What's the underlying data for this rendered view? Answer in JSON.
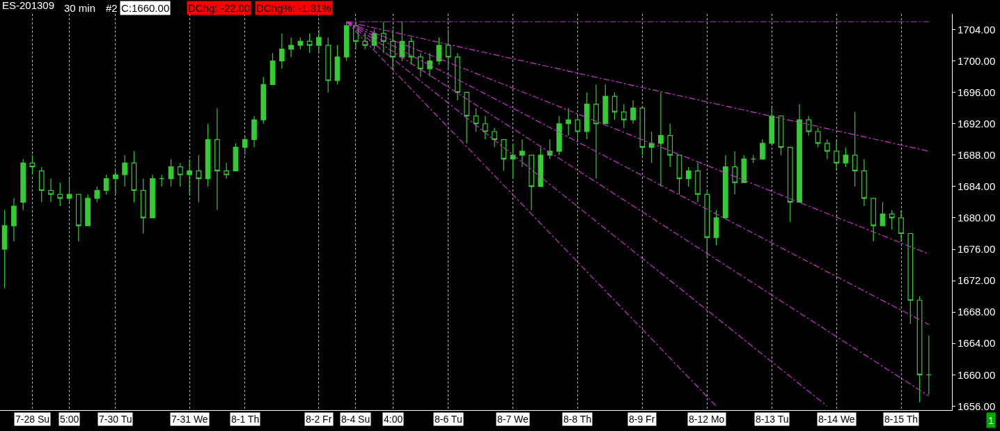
{
  "chart_data": {
    "type": "candlestick",
    "title": "ES-201309",
    "annotations": [
      "30 min",
      "#2",
      "C:1660.00",
      "DChg: -22.00",
      "DChg%: -1.31%",
      "1"
    ],
    "categories": [
      null,
      null,
      null,
      "7-28 Su",
      null,
      null,
      null,
      "5:00",
      null,
      null,
      null,
      null,
      "7-30 Tu",
      null,
      null,
      null,
      null,
      null,
      null,
      null,
      "7-31 We",
      null,
      null,
      null,
      null,
      null,
      "8-1 Th",
      null,
      null,
      null,
      null,
      null,
      null,
      null,
      "8-2 Fr",
      null,
      null,
      null,
      "8-4 Su",
      null,
      null,
      null,
      "4:00",
      null,
      null,
      null,
      null,
      null,
      "8-6 Tu",
      null,
      null,
      null,
      null,
      null,
      null,
      "8-7 We",
      null,
      null,
      null,
      null,
      null,
      null,
      "8-8 Th",
      null,
      null,
      null,
      null,
      null,
      null,
      "8-9 Fr",
      null,
      null,
      null,
      null,
      null,
      null,
      "8-12 Mo",
      null,
      null,
      null,
      null,
      null,
      null,
      "8-13 Tu",
      null,
      null,
      null,
      null,
      null,
      null,
      "8-14 We",
      null,
      null,
      null,
      null,
      null,
      null,
      "8-15 Th",
      null,
      null,
      null
    ],
    "color": "#33cc33",
    "ohlc": [
      [
        1676,
        1681,
        1671,
        1679
      ],
      [
        1679,
        1682.5,
        1677,
        1681.5
      ],
      [
        1682,
        1687.5,
        1681,
        1687
      ],
      [
        1687,
        1688,
        1685.5,
        1686.5
      ],
      [
        1686,
        1686.5,
        1682,
        1683.5
      ],
      [
        1683.5,
        1685,
        1682,
        1683
      ],
      [
        1683,
        1684.5,
        1681.5,
        1682.5
      ],
      [
        1682.5,
        1685,
        1682,
        1683
      ],
      [
        1683,
        1683,
        1677,
        1679
      ],
      [
        1679,
        1683,
        1679,
        1682.5
      ],
      [
        1682.5,
        1684,
        1682,
        1683.5
      ],
      [
        1683.5,
        1685.5,
        1683,
        1685
      ],
      [
        1685,
        1686,
        1683,
        1685.5
      ],
      [
        1685.5,
        1688,
        1684,
        1687
      ],
      [
        1687,
        1688.5,
        1682,
        1683.5
      ],
      [
        1683.5,
        1685,
        1678,
        1680
      ],
      [
        1680,
        1685.5,
        1680,
        1685
      ],
      [
        1685,
        1685.5,
        1684,
        1685
      ],
      [
        1685,
        1687.5,
        1684,
        1686.5
      ],
      [
        1686.5,
        1687,
        1684,
        1685.5
      ],
      [
        1685.5,
        1687.5,
        1683,
        1686
      ],
      [
        1686,
        1688,
        1682,
        1685
      ],
      [
        1685,
        1692,
        1684,
        1690
      ],
      [
        1690,
        1694,
        1681,
        1686
      ],
      [
        1686,
        1687,
        1685,
        1685.5
      ],
      [
        1686,
        1689.5,
        1686,
        1689
      ],
      [
        1689,
        1690.5,
        1688,
        1690
      ],
      [
        1690,
        1693,
        1689,
        1692.5
      ],
      [
        1692.5,
        1698,
        1692,
        1697
      ],
      [
        1697,
        1701,
        1697,
        1700
      ],
      [
        1700,
        1703.5,
        1699,
        1701.5
      ],
      [
        1701.5,
        1703,
        1700.5,
        1702
      ],
      [
        1702,
        1703,
        1701.5,
        1702.5
      ],
      [
        1702.5,
        1703.5,
        1701,
        1702
      ],
      [
        1702,
        1704,
        1701,
        1703
      ],
      [
        1702,
        1703,
        1696,
        1697.5
      ],
      [
        1697.5,
        1702,
        1697,
        1700.5
      ],
      [
        1700.5,
        1705,
        1700,
        1704.5
      ],
      [
        1704.5,
        1705,
        1701.5,
        1702.5
      ],
      [
        1702.5,
        1703.5,
        1701.5,
        1702
      ],
      [
        1702,
        1704,
        1701.5,
        1703.5
      ],
      [
        1703.5,
        1705,
        1701,
        1702.5
      ],
      [
        1702.5,
        1704,
        1699,
        1700.5
      ],
      [
        1700.5,
        1705,
        1700,
        1702.5
      ],
      [
        1702.5,
        1703,
        1699.5,
        1700.5
      ],
      [
        1700.5,
        1701,
        1698,
        1699
      ],
      [
        1699,
        1701,
        1698,
        1700
      ],
      [
        1700,
        1703,
        1699.5,
        1702
      ],
      [
        1702,
        1704,
        1699,
        1700.5
      ],
      [
        1700.5,
        1701,
        1695,
        1696
      ],
      [
        1696,
        1696,
        1689.5,
        1693
      ],
      [
        1693,
        1694,
        1691,
        1692
      ],
      [
        1692,
        1693,
        1690,
        1691
      ],
      [
        1691,
        1691.5,
        1689,
        1690
      ],
      [
        1690,
        1690,
        1686,
        1687.5
      ],
      [
        1687.5,
        1689.5,
        1685,
        1688
      ],
      [
        1688,
        1690,
        1686.5,
        1688.5
      ],
      [
        1688,
        1688,
        1681,
        1684
      ],
      [
        1684,
        1689,
        1684,
        1688
      ],
      [
        1688,
        1690,
        1687.5,
        1688.5
      ],
      [
        1688.5,
        1693,
        1688,
        1692
      ],
      [
        1692,
        1694,
        1690.5,
        1692.5
      ],
      [
        1692.5,
        1693,
        1690,
        1691
      ],
      [
        1691,
        1696,
        1690,
        1694.5
      ],
      [
        1694.5,
        1697,
        1685,
        1692
      ],
      [
        1692,
        1697,
        1692,
        1695.5
      ],
      [
        1695.5,
        1696,
        1692.5,
        1693.5
      ],
      [
        1693.5,
        1694.5,
        1691.5,
        1692.5
      ],
      [
        1692.5,
        1695,
        1692,
        1694
      ],
      [
        1694,
        1694,
        1688,
        1689
      ],
      [
        1689,
        1691,
        1687,
        1689.5
      ],
      [
        1689.5,
        1696,
        1684,
        1690.5
      ],
      [
        1690.5,
        1692,
        1686.5,
        1688
      ],
      [
        1688,
        1688,
        1683,
        1685
      ],
      [
        1685,
        1686.5,
        1684,
        1686
      ],
      [
        1686,
        1687,
        1682,
        1683
      ],
      [
        1683,
        1683.5,
        1675,
        1677.5
      ],
      [
        1677.5,
        1681,
        1676.5,
        1680
      ],
      [
        1680,
        1688,
        1680,
        1686.5
      ],
      [
        1686.5,
        1688.5,
        1683,
        1684.5
      ],
      [
        1684.5,
        1688,
        1684.5,
        1687.5
      ],
      [
        1687.5,
        1688,
        1687,
        1687.5
      ],
      [
        1687.5,
        1690,
        1687.5,
        1689.5
      ],
      [
        1689.5,
        1694,
        1689.5,
        1693
      ],
      [
        1693,
        1693,
        1688,
        1689
      ],
      [
        1689,
        1689,
        1679.5,
        1682
      ],
      [
        1682,
        1694.5,
        1682,
        1692.5
      ],
      [
        1692.5,
        1693,
        1690.5,
        1691
      ],
      [
        1691,
        1691.5,
        1689,
        1689.5
      ],
      [
        1689.5,
        1690,
        1687.5,
        1688.5
      ],
      [
        1688.5,
        1690,
        1686,
        1687
      ],
      [
        1687,
        1689,
        1686.5,
        1688
      ],
      [
        1688,
        1693.5,
        1684,
        1686
      ],
      [
        1686,
        1687.5,
        1681.5,
        1682.5
      ],
      [
        1682.5,
        1682.5,
        1677,
        1679
      ],
      [
        1679,
        1682,
        1679,
        1680.5
      ],
      [
        1680.5,
        1681,
        1678.5,
        1680
      ],
      [
        1680,
        1681,
        1677,
        1678
      ],
      [
        1678,
        1678,
        1666.5,
        1669.5
      ],
      [
        1669.5,
        1670,
        1656.5,
        1660
      ],
      [
        1660,
        1665,
        1657.5,
        1660
      ]
    ],
    "series": [
      {
        "type": "line",
        "color": "#cc33cc",
        "values": [
          null,
          null,
          null,
          null,
          null,
          null,
          null,
          null,
          null,
          null,
          null,
          null,
          null,
          null,
          null,
          null,
          null,
          null,
          null,
          null,
          null,
          null,
          null,
          null,
          null,
          null,
          null,
          null,
          null,
          null,
          null,
          null,
          null,
          null,
          null,
          null,
          null,
          1705,
          null,
          null,
          null,
          null,
          null,
          null,
          null,
          null,
          null,
          null,
          null,
          null,
          null,
          null,
          null,
          null,
          null,
          null,
          null,
          null,
          null,
          null,
          null,
          null,
          null,
          null,
          null,
          null,
          null,
          null,
          null,
          null,
          null,
          null,
          null,
          null,
          null,
          null,
          null,
          null,
          null,
          null,
          null,
          null,
          null,
          null,
          null,
          null,
          null,
          null,
          null,
          null,
          null,
          null,
          null,
          null,
          null,
          null,
          null,
          null,
          null,
          null,
          1705
        ]
      },
      {
        "type": "line",
        "color": "#cc33cc",
        "values": [
          null,
          null,
          null,
          null,
          null,
          null,
          null,
          null,
          null,
          null,
          null,
          null,
          null,
          null,
          null,
          null,
          null,
          null,
          null,
          null,
          null,
          null,
          null,
          null,
          null,
          null,
          null,
          null,
          null,
          null,
          null,
          null,
          null,
          null,
          null,
          null,
          null,
          1705,
          null,
          null,
          null,
          null,
          null,
          null,
          null,
          null,
          null,
          null,
          null,
          null,
          null,
          null,
          null,
          null,
          null,
          null,
          null,
          null,
          null,
          null,
          null,
          null,
          null,
          null,
          null,
          null,
          null,
          null,
          null,
          null,
          null,
          null,
          null,
          null,
          null,
          null,
          null,
          null,
          null,
          null,
          null,
          null,
          null,
          null,
          null,
          null,
          null,
          null,
          null,
          null,
          null,
          null,
          null,
          null,
          null,
          null,
          null,
          null,
          null,
          null,
          1688.5
        ]
      },
      {
        "type": "line",
        "color": "#cc33cc",
        "values": [
          null,
          null,
          null,
          null,
          null,
          null,
          null,
          null,
          null,
          null,
          null,
          null,
          null,
          null,
          null,
          null,
          null,
          null,
          null,
          null,
          null,
          null,
          null,
          null,
          null,
          null,
          null,
          null,
          null,
          null,
          null,
          null,
          null,
          null,
          null,
          null,
          null,
          1705,
          null,
          null,
          null,
          null,
          null,
          null,
          null,
          null,
          null,
          null,
          null,
          null,
          null,
          null,
          null,
          null,
          null,
          null,
          null,
          null,
          null,
          null,
          null,
          null,
          null,
          null,
          null,
          null,
          null,
          null,
          null,
          null,
          null,
          null,
          null,
          null,
          null,
          null,
          null,
          null,
          null,
          null,
          null,
          null,
          null,
          null,
          null,
          null,
          null,
          null,
          null,
          null,
          null,
          null,
          null,
          null,
          null,
          null,
          null,
          null,
          null,
          null,
          1675.4
        ]
      },
      {
        "type": "line",
        "color": "#cc33cc",
        "values": [
          null,
          null,
          null,
          null,
          null,
          null,
          null,
          null,
          null,
          null,
          null,
          null,
          null,
          null,
          null,
          null,
          null,
          null,
          null,
          null,
          null,
          null,
          null,
          null,
          null,
          null,
          null,
          null,
          null,
          null,
          null,
          null,
          null,
          null,
          null,
          null,
          null,
          1705,
          null,
          null,
          null,
          null,
          null,
          null,
          null,
          null,
          null,
          null,
          null,
          null,
          null,
          null,
          null,
          null,
          null,
          null,
          null,
          null,
          null,
          null,
          null,
          null,
          null,
          null,
          null,
          null,
          null,
          null,
          null,
          null,
          null,
          null,
          null,
          null,
          null,
          null,
          null,
          null,
          null,
          null,
          null,
          null,
          null,
          null,
          null,
          null,
          null,
          null,
          null,
          null,
          null,
          null,
          null,
          null,
          null,
          null,
          null,
          null,
          null,
          null,
          1666.4
        ]
      },
      {
        "type": "line",
        "color": "#cc33cc",
        "values": [
          null,
          null,
          null,
          null,
          null,
          null,
          null,
          null,
          null,
          null,
          null,
          null,
          null,
          null,
          null,
          null,
          null,
          null,
          null,
          null,
          null,
          null,
          null,
          null,
          null,
          null,
          null,
          null,
          null,
          null,
          null,
          null,
          null,
          null,
          null,
          null,
          null,
          1705,
          null,
          null,
          null,
          null,
          null,
          null,
          null,
          null,
          null,
          null,
          null,
          null,
          null,
          null,
          null,
          null,
          null,
          null,
          null,
          null,
          null,
          null,
          null,
          null,
          null,
          null,
          null,
          null,
          null,
          null,
          null,
          null,
          null,
          null,
          null,
          null,
          null,
          null,
          null,
          null,
          null,
          null,
          null,
          null,
          null,
          null,
          null,
          null,
          null,
          null,
          null,
          null,
          null,
          null,
          null,
          null,
          null,
          null,
          null,
          null,
          null,
          null,
          1657.3
        ]
      },
      {
        "type": "line",
        "color": "#cc33cc",
        "values": [
          null,
          null,
          null,
          null,
          null,
          null,
          null,
          null,
          null,
          null,
          null,
          null,
          null,
          null,
          null,
          null,
          null,
          null,
          null,
          null,
          null,
          null,
          null,
          null,
          null,
          null,
          null,
          null,
          null,
          null,
          null,
          null,
          null,
          null,
          null,
          null,
          null,
          1705,
          null,
          null,
          null,
          null,
          null,
          null,
          null,
          null,
          null,
          null,
          null,
          null,
          null,
          null,
          null,
          null,
          null,
          null,
          null,
          null,
          null,
          null,
          null,
          null,
          null,
          null,
          null,
          null,
          null,
          null,
          null,
          null,
          null,
          null,
          null,
          null,
          null,
          null,
          null,
          null,
          null,
          null,
          null,
          null,
          null,
          null,
          null,
          null,
          null,
          null,
          null,
          1656,
          null,
          null,
          null,
          null,
          null,
          null,
          null,
          null,
          null,
          null,
          null
        ]
      },
      {
        "type": "line",
        "color": "#cc33cc",
        "values": [
          null,
          null,
          null,
          null,
          null,
          null,
          null,
          null,
          null,
          null,
          null,
          null,
          null,
          null,
          null,
          null,
          null,
          null,
          null,
          null,
          null,
          null,
          null,
          null,
          null,
          null,
          null,
          null,
          null,
          null,
          null,
          null,
          null,
          null,
          null,
          null,
          null,
          1705,
          null,
          null,
          null,
          null,
          null,
          null,
          null,
          null,
          null,
          null,
          null,
          null,
          null,
          null,
          null,
          null,
          null,
          null,
          null,
          null,
          null,
          null,
          null,
          null,
          null,
          null,
          null,
          null,
          null,
          null,
          null,
          null,
          null,
          null,
          null,
          null,
          null,
          null,
          null,
          1656,
          null,
          null,
          null,
          null,
          null,
          null,
          null,
          null,
          null,
          null,
          null,
          null,
          null,
          null,
          null,
          null,
          null,
          null,
          null,
          null,
          null,
          null,
          null
        ]
      }
    ],
    "line_style": "dashed",
    "ylim": [
      1655.5,
      1706
    ],
    "yticks": [
      {
        "value": 1656,
        "label": "1656.00"
      },
      {
        "value": 1660,
        "label": "1660.00"
      },
      {
        "value": 1664,
        "label": "1664.00"
      },
      {
        "value": 1668,
        "label": "1668.00"
      },
      {
        "value": 1672,
        "label": "1672.00"
      },
      {
        "value": 1676,
        "label": "1676.00"
      },
      {
        "value": 1680,
        "label": "1680.00"
      },
      {
        "value": 1684,
        "label": "1684.00"
      },
      {
        "value": 1688,
        "label": "1688.00"
      },
      {
        "value": 1692,
        "label": "1692.00"
      },
      {
        "value": 1696,
        "label": "1696.00"
      },
      {
        "value": 1700,
        "label": "1700.00"
      },
      {
        "value": 1704,
        "label": "1704.00"
      }
    ],
    "grid": "x"
  }
}
